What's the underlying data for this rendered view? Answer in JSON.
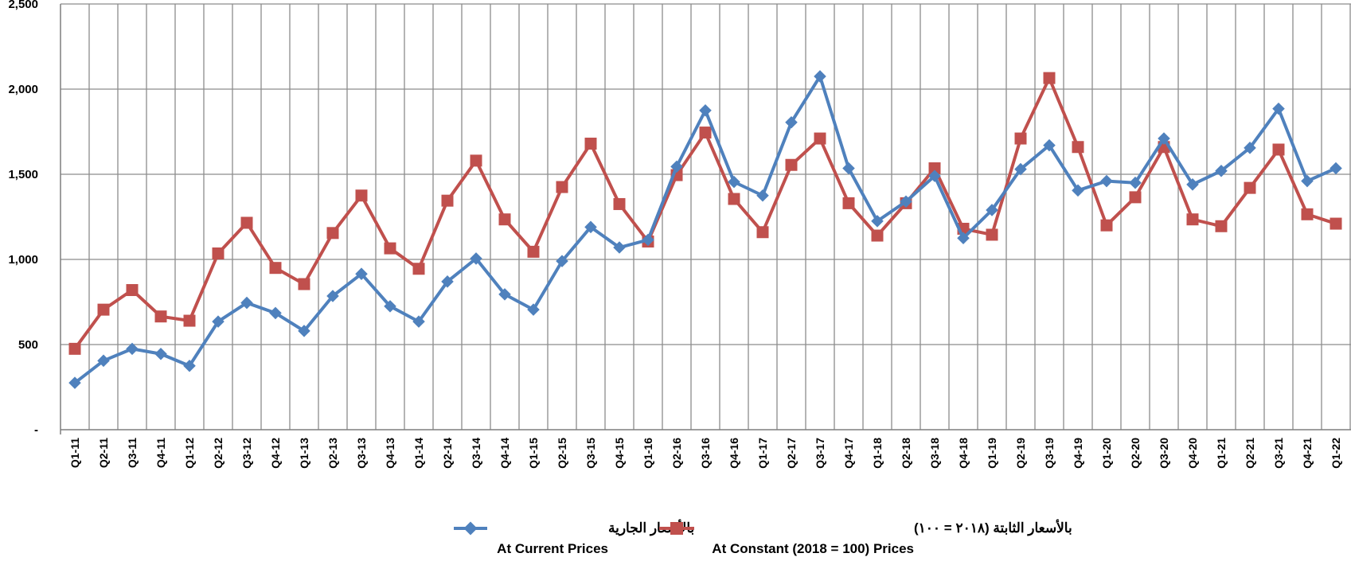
{
  "chart_data": {
    "type": "line",
    "title": "",
    "xlabel": "",
    "ylabel": "",
    "ylim": [
      0,
      2500
    ],
    "yticks": [
      {
        "value": 0,
        "label": "-"
      },
      {
        "value": 500,
        "label": "500"
      },
      {
        "value": 1000,
        "label": "1,000"
      },
      {
        "value": 1500,
        "label": "1,500"
      },
      {
        "value": 2000,
        "label": "2,000"
      },
      {
        "value": 2500,
        "label": "2,500"
      }
    ],
    "grid": true,
    "legend_position": "bottom-center",
    "categories": [
      "Q1-11",
      "Q2-11",
      "Q3-11",
      "Q4-11",
      "Q1-12",
      "Q2-12",
      "Q3-12",
      "Q4-12",
      "Q1-13",
      "Q2-13",
      "Q3-13",
      "Q4-13",
      "Q1-14",
      "Q2-14",
      "Q3-14",
      "Q4-14",
      "Q1-15",
      "Q2-15",
      "Q3-15",
      "Q4-15",
      "Q1-16",
      "Q2-16",
      "Q3-16",
      "Q4-16",
      "Q1-17",
      "Q2-17",
      "Q3-17",
      "Q4-17",
      "Q1-18",
      "Q2-18",
      "Q3-18",
      "Q4-18",
      "Q1-19",
      "Q2-19",
      "Q3-19",
      "Q4-19",
      "Q1-20",
      "Q2-20",
      "Q3-20",
      "Q4-20",
      "Q1-21",
      "Q2-21",
      "Q3-21",
      "Q4-21",
      "Q1-22"
    ],
    "series": [
      {
        "name_ar": "بالأسعار الجارية",
        "name": "At Current Prices",
        "color": "#4F81BD",
        "marker": "diamond",
        "values": [
          275,
          405,
          475,
          445,
          375,
          635,
          745,
          685,
          580,
          785,
          915,
          725,
          635,
          870,
          1005,
          795,
          705,
          990,
          1190,
          1070,
          1115,
          1545,
          1875,
          1455,
          1375,
          1805,
          2075,
          1535,
          1225,
          1340,
          1490,
          1125,
          1290,
          1530,
          1670,
          1405,
          1460,
          1450,
          1710,
          1440,
          1520,
          1655,
          1885,
          1460,
          1535
        ]
      },
      {
        "name_ar": "بالأسعار الثابتة (٢٠١٨ = ١٠٠)",
        "name": "At Constant (2018 = 100) Prices",
        "color": "#C0504D",
        "marker": "square",
        "values": [
          475,
          705,
          820,
          665,
          640,
          1035,
          1215,
          950,
          855,
          1155,
          1375,
          1065,
          945,
          1345,
          1580,
          1235,
          1045,
          1425,
          1680,
          1325,
          1105,
          1495,
          1745,
          1355,
          1160,
          1555,
          1710,
          1330,
          1140,
          1330,
          1535,
          1180,
          1145,
          1710,
          2065,
          1660,
          1200,
          1365,
          1660,
          1235,
          1195,
          1420,
          1645,
          1265,
          1210
        ]
      }
    ]
  }
}
